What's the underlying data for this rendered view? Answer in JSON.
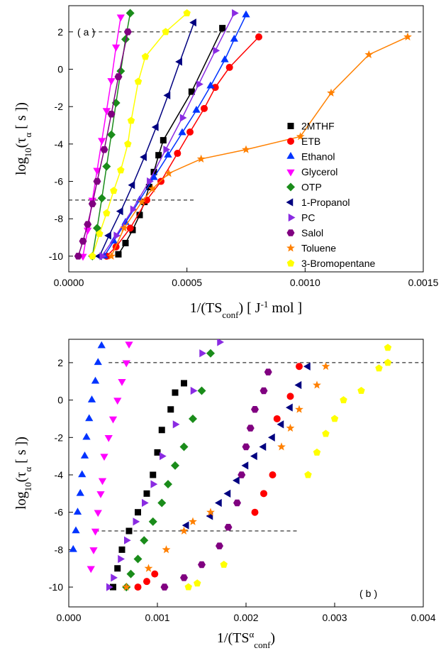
{
  "chart_data": [
    {
      "type": "scatter",
      "annotation": "(a)",
      "connect": true,
      "legend": "lower right",
      "xlabel": [
        "1/(TS",
        "conf",
        ")  [ J",
        "-1",
        " mol ]"
      ],
      "ylabel": [
        "log",
        "10",
        "(τ",
        "α",
        " [ s ])"
      ],
      "xlim": [
        0,
        0.0015
      ],
      "ylim": [
        -10.84,
        3.4
      ],
      "xticks": [
        {
          "value": 0,
          "label": "0.0000"
        },
        0.0005,
        {
          "value": 0.001,
          "label": "0.0010"
        },
        0.0015
      ],
      "yticks": [
        -10,
        -8,
        -6,
        -4,
        -2,
        0,
        2
      ],
      "reference_lines": [
        {
          "y": 2,
          "x": [
            0.0001,
            0.0015
          ]
        },
        {
          "y": -7,
          "x": [
            0,
            0.00053
          ]
        }
      ],
      "series": [
        {
          "name": "2MTHF",
          "color": "#000000",
          "marker": "square",
          "x": [
            0.00021,
            0.00024,
            0.00027,
            0.0003,
            0.00032,
            0.00034,
            0.00036,
            0.00038,
            0.0004,
            0.00052,
            0.00065
          ],
          "values": [
            -9.9,
            -9.3,
            -8.6,
            -7.8,
            -7.1,
            -6.3,
            -5.5,
            -4.6,
            -3.8,
            -1.2,
            2.2
          ]
        },
        {
          "name": "ETB",
          "color": "#ff0000",
          "marker": "circle",
          "x": [
            0.00016,
            0.0002,
            0.00026,
            0.00033,
            0.00039,
            0.00046,
            0.000513,
            0.000573,
            0.00062,
            0.00068,
            0.000804
          ],
          "values": [
            -10,
            -9.5,
            -8.5,
            -7,
            -6,
            -4.5,
            -3.36,
            -2.1,
            -0.97,
            0.1,
            1.73
          ]
        },
        {
          "name": "Ethanol",
          "color": "#0033ff",
          "marker": "triangle-up",
          "x": [
            0.00015,
            0.00019,
            0.00024,
            0.0003,
            0.00036,
            0.00042,
            0.00048,
            0.00054,
            0.0006,
            0.00066,
            0.0007,
            0.00075
          ],
          "values": [
            -10,
            -9.2,
            -8.2,
            -7,
            -5.8,
            -4.6,
            -3.4,
            -2.2,
            -0.9,
            0.5,
            1.6,
            2.9
          ]
        },
        {
          "name": "Glycerol",
          "color": "#ff00ff",
          "marker": "triangle-down",
          "x": [
            6e-05,
            8e-05,
            0.0001,
            0.00012,
            0.00014,
            0.00016,
            0.00018,
            0.0002,
            0.00022
          ],
          "values": [
            -10,
            -8.6,
            -7,
            -5.4,
            -3.8,
            -2.2,
            -0.6,
            1.2,
            2.8
          ]
        },
        {
          "name": "OTP",
          "color": "#1a8c1a",
          "marker": "diamond",
          "x": [
            0.0001,
            0.00012,
            0.00014,
            0.00016,
            0.00018,
            0.0002,
            0.00022,
            0.00024,
            0.00026
          ],
          "values": [
            -10,
            -8.5,
            -6.9,
            -5.2,
            -3.5,
            -1.8,
            -0.1,
            1.6,
            3
          ]
        },
        {
          "name": "1-Propanol",
          "color": "#000080",
          "marker": "triangle-left",
          "x": [
            0.00013,
            0.00017,
            0.00022,
            0.00027,
            0.00032,
            0.00037,
            0.00042,
            0.00047,
            0.00053
          ],
          "values": [
            -10,
            -8.9,
            -7.6,
            -6.2,
            -4.7,
            -3.1,
            -1.4,
            0.4,
            2.5
          ]
        },
        {
          "name": "PC",
          "color": "#8a2be2",
          "marker": "triangle-right",
          "x": [
            0.00014,
            0.0002,
            0.00027,
            0.00034,
            0.00041,
            0.00048,
            0.00055,
            0.00062,
            0.0007
          ],
          "values": [
            -10,
            -8.9,
            -7.5,
            -6,
            -4.3,
            -2.6,
            -0.8,
            1,
            3
          ]
        },
        {
          "name": "Salol",
          "color": "#800080",
          "marker": "hexagon",
          "x": [
            4e-05,
            6e-05,
            8e-05,
            0.0001,
            0.00012,
            0.00015,
            0.00018,
            0.00021,
            0.00025
          ],
          "values": [
            -10,
            -9.2,
            -8.3,
            -7.2,
            -6,
            -4.3,
            -2.4,
            -0.4,
            2
          ]
        },
        {
          "name": "Toluene",
          "color": "#ff8000",
          "marker": "star",
          "x": [
            0.00018,
            0.000234,
            0.000309,
            0.000354,
            0.000423,
            0.00056,
            0.00075,
            0.00098,
            0.00111,
            0.00127,
            0.001434
          ],
          "values": [
            -10,
            -8.5,
            -7.1,
            -6.4,
            -5.57,
            -4.8,
            -4.3,
            -3.6,
            -1.27,
            0.78,
            1.73
          ]
        },
        {
          "name": "3-Bromopentane",
          "color": "#ffff00",
          "marker": "pentagon",
          "x": [
            0.0001,
            0.00013,
            0.00016,
            0.00019,
            0.00022,
            0.00025,
            0.000264,
            0.000294,
            0.000324,
            0.00041,
            0.0005
          ],
          "values": [
            -10,
            -8.8,
            -7.7,
            -6.5,
            -5.4,
            -4,
            -2.75,
            -0.66,
            0.67,
            2,
            3
          ]
        }
      ]
    },
    {
      "type": "scatter",
      "annotation": "(b)",
      "connect": false,
      "xlabel": [
        "1/(TS",
        "α",
        "conf",
        ")"
      ],
      "ylabel": [
        "log",
        "10",
        "(τ",
        "α",
        " [ s ])"
      ],
      "xlim": [
        0,
        0.004
      ],
      "ylim": [
        -11.06,
        3.25
      ],
      "xticks": [
        {
          "value": 0,
          "label": "0.000"
        },
        0.001,
        0.002,
        0.003,
        0.004
      ],
      "yticks": [
        -10,
        -8,
        -6,
        -4,
        -2,
        0,
        2
      ],
      "reference_lines": [
        {
          "y": 2,
          "x": [
            0.00045,
            0.004
          ]
        },
        {
          "y": -7,
          "x": [
            0.0003,
            0.0026
          ]
        }
      ],
      "series": [
        {
          "name": "2MTHF",
          "color": "#000000",
          "marker": "square",
          "x": [
            0.0005,
            0.00055,
            0.0006,
            0.00068,
            0.00078,
            0.00088,
            0.00095,
            0.001,
            0.00105,
            0.00115,
            0.0012,
            0.0013
          ],
          "values": [
            -10,
            -9,
            -8,
            -7,
            -6,
            -5,
            -4,
            -2.8,
            -1.6,
            -0.5,
            0.4,
            0.9
          ]
        },
        {
          "name": "ETB",
          "color": "#ff0000",
          "marker": "circle",
          "x": [
            0.00078,
            0.00088,
            0.00097,
            0.0021,
            0.0022,
            0.0023,
            0.00235,
            0.0025,
            0.0026
          ],
          "values": [
            -10,
            -9.7,
            -9.3,
            -6,
            -5,
            -4,
            -1,
            0.2,
            1.8
          ]
        },
        {
          "name": "Ethanol",
          "color": "#0033ff",
          "marker": "triangle-up",
          "x": [
            5e-05,
            8e-05,
            0.0001,
            0.00013,
            0.00015,
            0.00018,
            0.0002,
            0.00023,
            0.00026,
            0.0003,
            0.00033,
            0.00037
          ],
          "values": [
            -8,
            -7,
            -6,
            -5,
            -4,
            -3,
            -2,
            -1,
            0,
            1,
            2,
            2.9
          ]
        },
        {
          "name": "Glycerol",
          "color": "#ff00ff",
          "marker": "triangle-down",
          "x": [
            0.00025,
            0.00028,
            0.0003,
            0.00033,
            0.00036,
            0.00038,
            0.0004,
            0.00045,
            0.0005,
            0.00055,
            0.0006,
            0.00065,
            0.00068
          ],
          "values": [
            -9,
            -8,
            -7,
            -6,
            -5,
            -4.3,
            -3,
            -2,
            -1,
            0,
            1,
            2,
            3
          ]
        },
        {
          "name": "OTP",
          "color": "#1a8c1a",
          "marker": "diamond",
          "x": [
            0.00065,
            0.0007,
            0.00078,
            0.00085,
            0.00095,
            0.00105,
            0.00112,
            0.0012,
            0.0013,
            0.0014,
            0.0015,
            0.0016
          ],
          "values": [
            -10,
            -9.3,
            -8.5,
            -7.5,
            -6.5,
            -5.5,
            -4.5,
            -3.5,
            -2.5,
            -1,
            0.5,
            2.5
          ]
        },
        {
          "name": "1-Propanol",
          "color": "#000080",
          "marker": "triangle-left",
          "x": [
            0.00133,
            0.0016,
            0.0017,
            0.0018,
            0.0019,
            0.002,
            0.0021,
            0.0022,
            0.0023,
            0.0024,
            0.0025,
            0.0026,
            0.0027
          ],
          "values": [
            -6.7,
            -6.2,
            -5.5,
            -5,
            -4.3,
            -3.5,
            -3,
            -2.5,
            -2,
            -1.3,
            -0.4,
            0.8,
            1.8
          ]
        },
        {
          "name": "PC",
          "color": "#8a2be2",
          "marker": "triangle-right",
          "x": [
            0.00045,
            0.0005,
            0.00058,
            0.00065,
            0.00075,
            0.00085,
            0.00095,
            0.00105,
            0.0012,
            0.0014,
            0.0015,
            0.0017
          ],
          "values": [
            -10,
            -9.5,
            -8.5,
            -7.5,
            -6.5,
            -5.5,
            -4.5,
            -3,
            -1.3,
            0.5,
            2.5,
            3.1
          ]
        },
        {
          "name": "Salol",
          "color": "#800080",
          "marker": "hexagon",
          "x": [
            0.00108,
            0.0013,
            0.0015,
            0.0017,
            0.0018,
            0.0019,
            0.00195,
            0.002,
            0.00205,
            0.0021,
            0.0022,
            0.00225
          ],
          "values": [
            -10,
            -9.5,
            -8.8,
            -7.8,
            -6.8,
            -5.5,
            -4,
            -2.5,
            -1.5,
            -0.5,
            0.5,
            1.5
          ]
        },
        {
          "name": "Toluene",
          "color": "#ff8000",
          "marker": "star",
          "x": [
            0.00065,
            0.0009,
            0.0011,
            0.0013,
            0.0014,
            0.0016,
            0.0024,
            0.0025,
            0.0026,
            0.0028,
            0.0029
          ],
          "values": [
            -10,
            -9,
            -8,
            -7,
            -6.5,
            -6,
            -2.5,
            -1.5,
            -0.5,
            0.8,
            1.8
          ]
        },
        {
          "name": "3-Bromopentane",
          "color": "#ffff00",
          "marker": "pentagon",
          "x": [
            0.00135,
            0.00145,
            0.00175,
            0.0027,
            0.0028,
            0.0029,
            0.003,
            0.0031,
            0.0033,
            0.0035,
            0.0036,
            0.0036
          ],
          "values": [
            -10,
            -9.8,
            -8.8,
            -4,
            -2.8,
            -1.8,
            -1,
            0,
            0.5,
            1.7,
            2,
            2.8
          ]
        }
      ]
    }
  ]
}
